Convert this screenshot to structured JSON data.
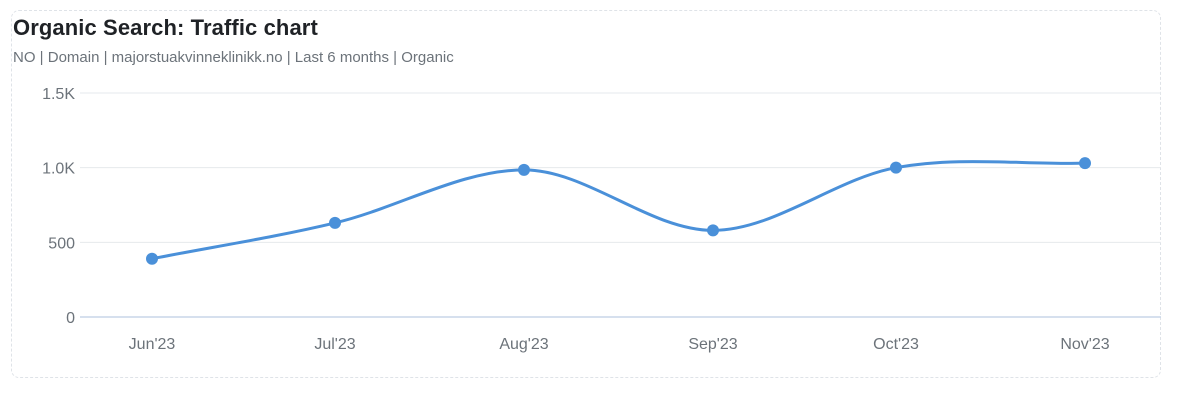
{
  "header": {
    "title": "Organic Search: Traffic chart",
    "subtitle": "NO | Domain | majorstuakvinneklinikk.no | Last 6 months | Organic"
  },
  "colors": {
    "series": "#4a90d9",
    "grid": "#e6e9ec",
    "baseline": "#c9d6e8",
    "tick_text": "#6c737a"
  },
  "chart_data": {
    "type": "line",
    "title": "Organic Search: Traffic chart",
    "xlabel": "",
    "ylabel": "",
    "categories": [
      "Jun'23",
      "Jul'23",
      "Aug'23",
      "Sep'23",
      "Oct'23",
      "Nov'23"
    ],
    "series": [
      {
        "values": [
          390,
          630,
          985,
          580,
          1000,
          1030
        ]
      }
    ],
    "ylim": [
      0,
      1500
    ],
    "yticks": [
      0,
      500,
      1000,
      1500
    ],
    "ytick_labels": [
      "0",
      "500",
      "1.0K",
      "1.5K"
    ],
    "grid": true,
    "legend": "none",
    "smooth": true
  }
}
